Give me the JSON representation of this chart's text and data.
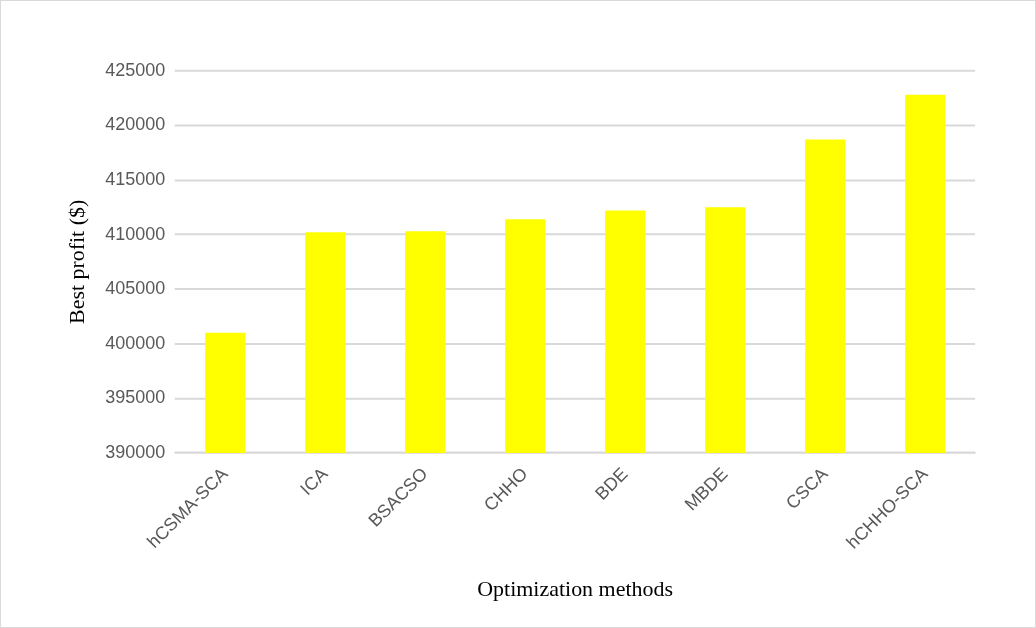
{
  "chart_data": {
    "type": "bar",
    "xlabel": "Optimization methods",
    "ylabel": "Best profit ($)",
    "categories": [
      "hCSMA-SCA",
      "ICA",
      "BSACSO",
      "CHHO",
      "BDE",
      "MBDE",
      "CSCA",
      "hCHHO-SCA"
    ],
    "values": [
      401000,
      410200,
      410300,
      411400,
      412200,
      412500,
      418700,
      422800
    ],
    "color": "#ffff00",
    "ylim": [
      390000,
      425000
    ],
    "yticks": [
      390000,
      395000,
      400000,
      405000,
      410000,
      415000,
      420000,
      425000
    ],
    "grid": "y"
  }
}
